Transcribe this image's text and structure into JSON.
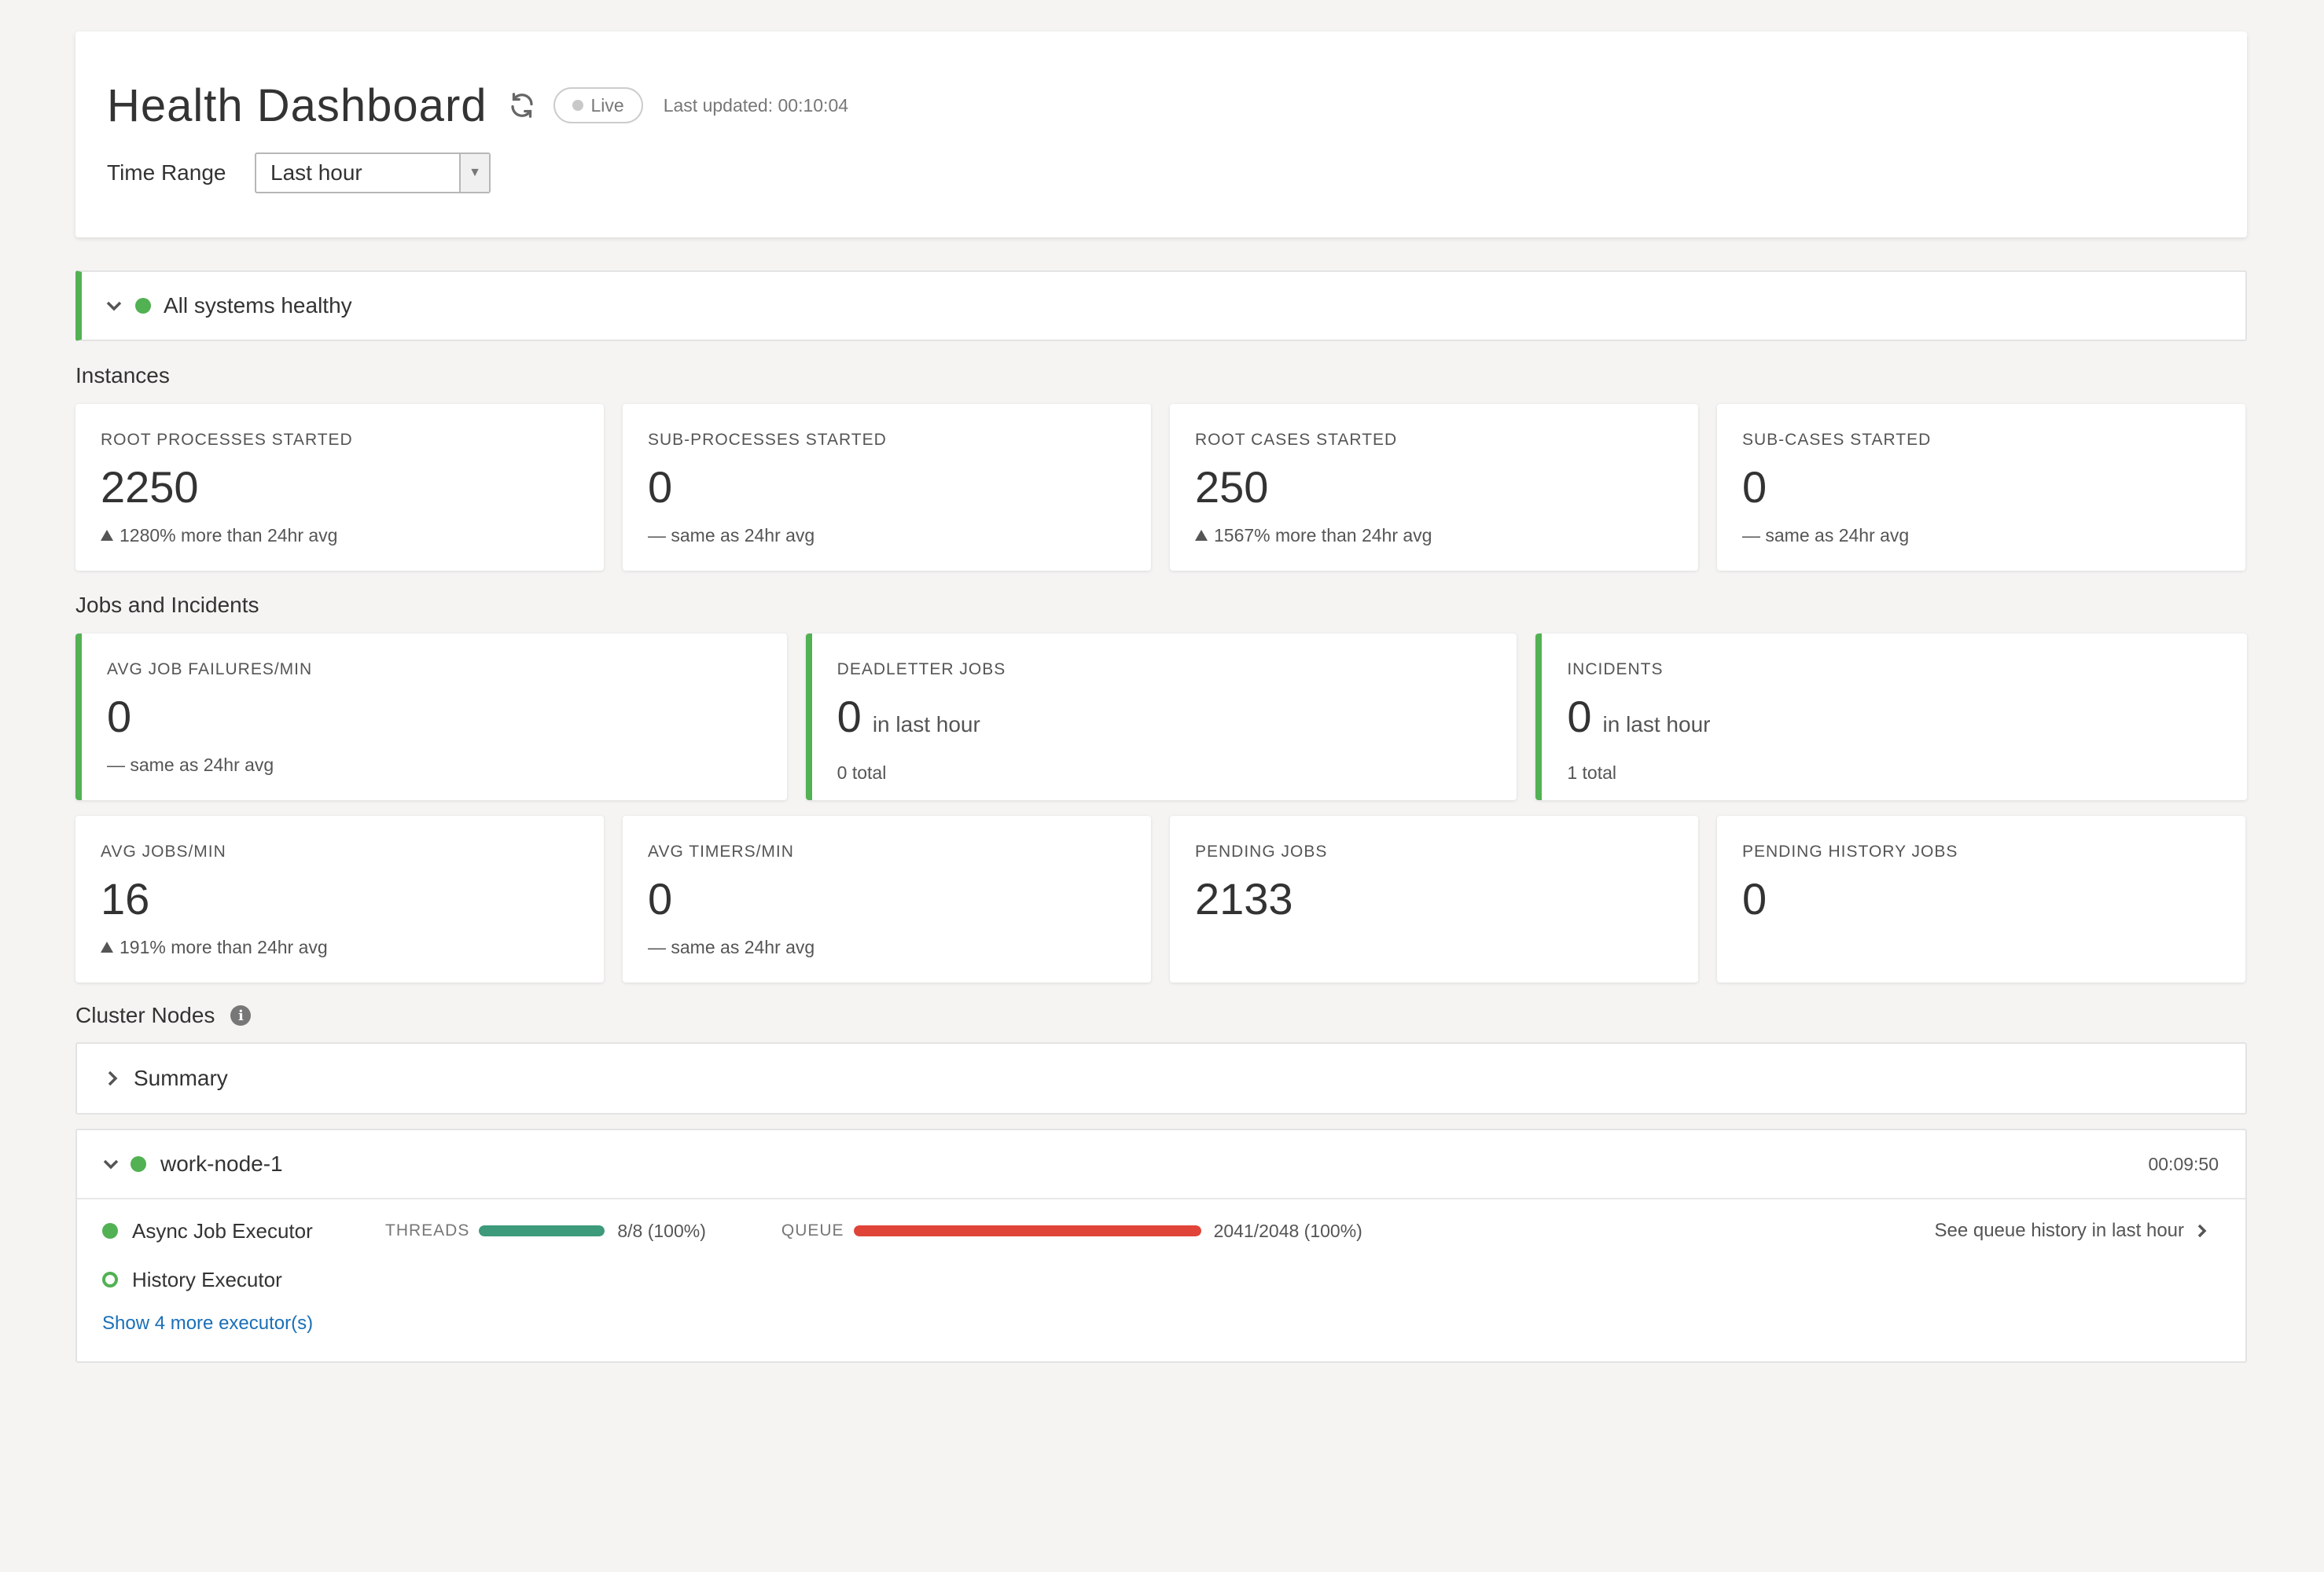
{
  "header": {
    "title": "Health Dashboard",
    "live_label": "Live",
    "last_updated": "Last updated: 00:10:04",
    "time_range_label": "Time Range",
    "time_range_value": "Last hour"
  },
  "status": {
    "text": "All systems healthy"
  },
  "instances": {
    "title": "Instances",
    "cards": [
      {
        "label": "ROOT PROCESSES STARTED",
        "value": "2250",
        "note": "1280% more than 24hr avg"
      },
      {
        "label": "SUB-PROCESSES STARTED",
        "value": "0",
        "note": "— same as 24hr avg"
      },
      {
        "label": "ROOT CASES STARTED",
        "value": "250",
        "note": "1567% more than 24hr avg"
      },
      {
        "label": "SUB-CASES STARTED",
        "value": "0",
        "note": "— same as 24hr avg"
      }
    ]
  },
  "jobs": {
    "title": "Jobs and Incidents",
    "top": [
      {
        "label": "AVG JOB FAILURES/MIN",
        "value": "0",
        "suffix": "",
        "note": "— same as 24hr avg"
      },
      {
        "label": "DEADLETTER JOBS",
        "value": "0",
        "suffix": "in last hour",
        "note": "0 total"
      },
      {
        "label": "INCIDENTS",
        "value": "0",
        "suffix": "in last hour",
        "note": "1 total"
      }
    ],
    "bottom": [
      {
        "label": "AVG JOBS/MIN",
        "value": "16",
        "note": "191% more than 24hr avg"
      },
      {
        "label": "AVG TIMERS/MIN",
        "value": "0",
        "note": "— same as 24hr avg"
      },
      {
        "label": "PENDING JOBS",
        "value": "2133",
        "note": ""
      },
      {
        "label": "PENDING HISTORY JOBS",
        "value": "0",
        "note": ""
      }
    ]
  },
  "cluster": {
    "title": "Cluster Nodes",
    "summary_label": "Summary",
    "node": {
      "name": "work-node-1",
      "time": "00:09:50",
      "executors": [
        {
          "name": "Async Job Executor",
          "threads_label": "THREADS",
          "threads_value": "8/8 (100%)",
          "threads_fill": 1.0,
          "queue_label": "QUEUE",
          "queue_value": "2041/2048 (100%)",
          "queue_fill": 1.0,
          "history_link": "See queue history in last hour"
        },
        {
          "name": "History Executor"
        }
      ],
      "more_link": "Show 4 more executor(s)"
    }
  },
  "colors": {
    "healthy": "#52b153",
    "threads_bar": "#3d9a7b",
    "queue_bar": "#e04438",
    "link": "#1a6fb8"
  }
}
